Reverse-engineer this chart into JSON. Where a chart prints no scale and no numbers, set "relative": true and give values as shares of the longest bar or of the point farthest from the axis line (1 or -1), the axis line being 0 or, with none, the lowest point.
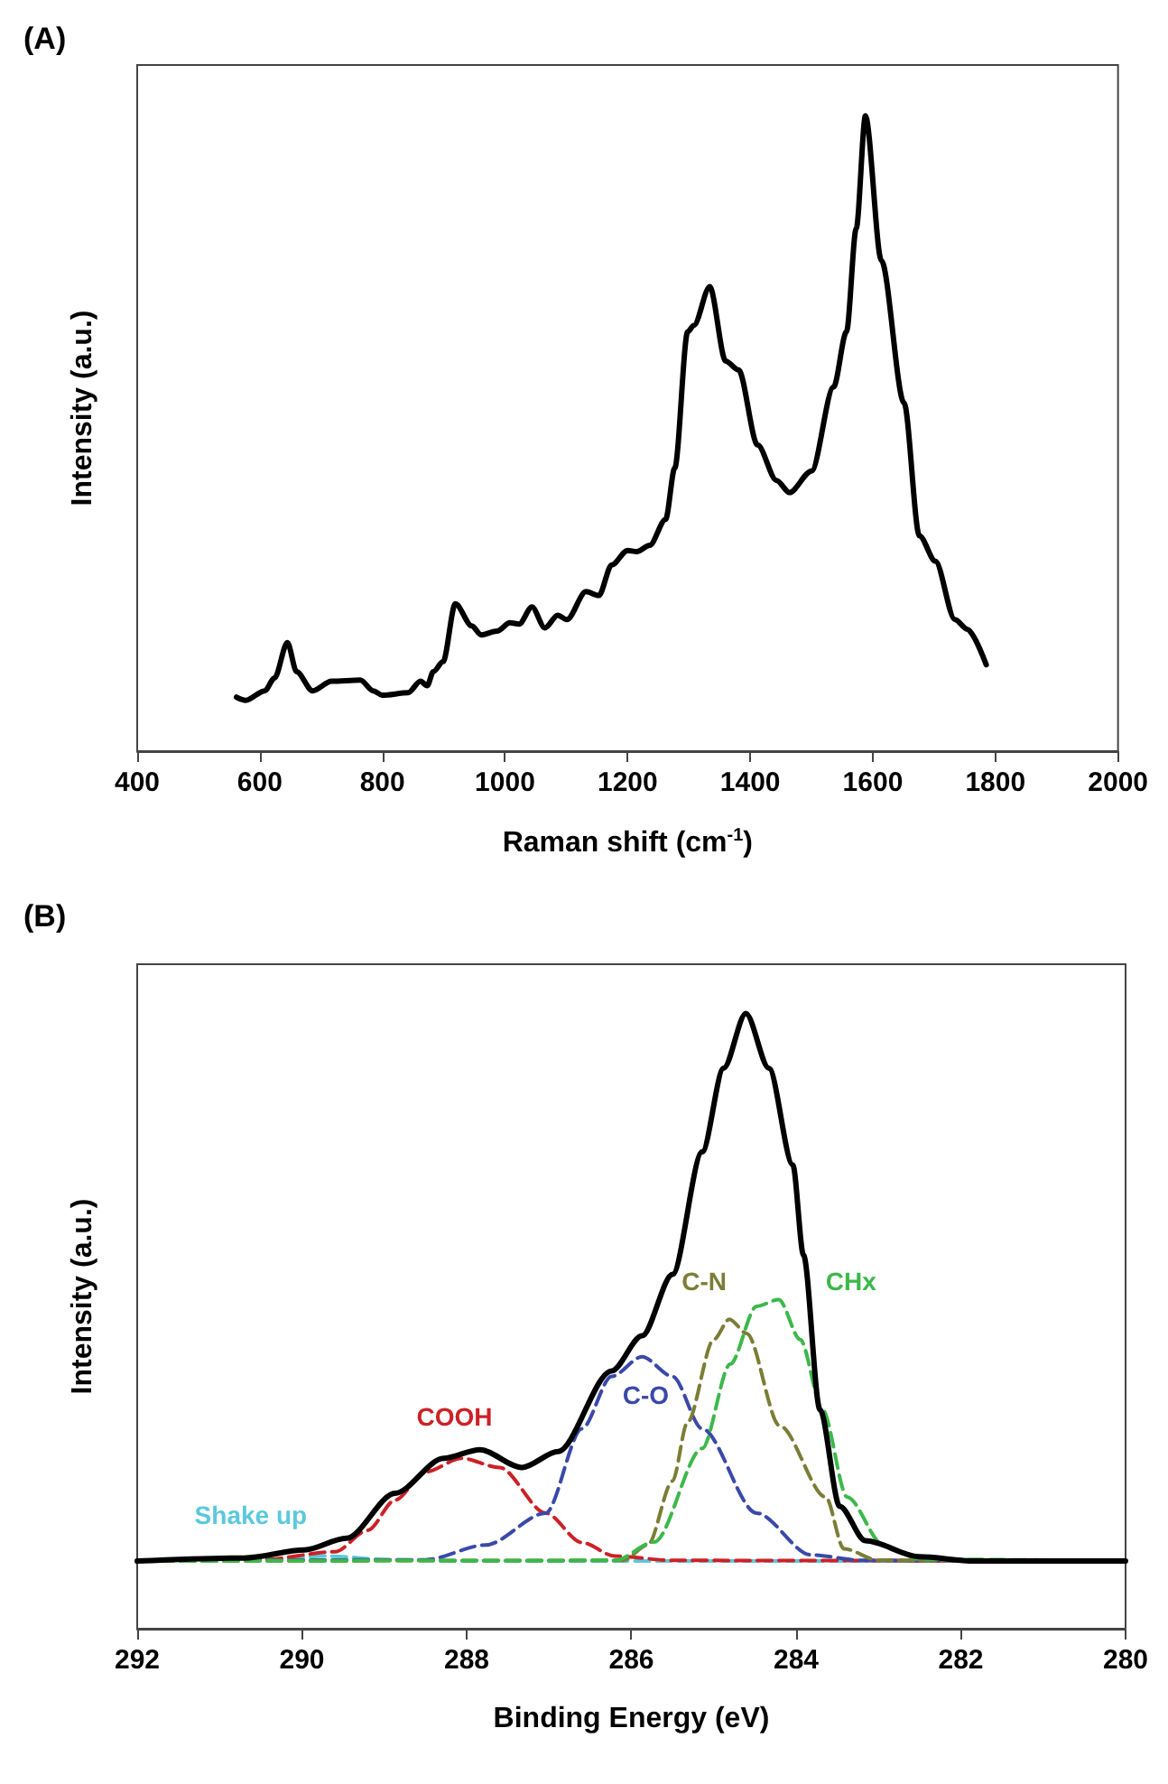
{
  "chart_data": [
    {
      "type": "line",
      "title": "(A)",
      "xlabel": "Raman shift (cm$^{-1}$)",
      "ylabel": "Intensity (a.u.)",
      "relative": true,
      "xlim": [
        400,
        2000
      ],
      "xticks": [
        400,
        600,
        800,
        1000,
        1200,
        1400,
        1600,
        1800,
        2000
      ],
      "grid": false,
      "legend": false,
      "marker": "none",
      "line_style": "solid",
      "series": [
        {
          "color": "#000000",
          "x": [
            562,
            577,
            608,
            624,
            645,
            660,
            686,
            717,
            764,
            785,
            800,
            842,
            862,
            873,
            883,
            899,
            919,
            946,
            961,
            987,
            1008,
            1023,
            1044,
            1065,
            1086,
            1101,
            1132,
            1153,
            1174,
            1200,
            1215,
            1236,
            1262,
            1277,
            1298,
            1308,
            1334,
            1360,
            1381,
            1412,
            1443,
            1464,
            1500,
            1536,
            1557,
            1573,
            1588,
            1614,
            1651,
            1676,
            1702,
            1734,
            1754,
            1785
          ],
          "values": [
            0.085,
            0.08,
            0.095,
            0.115,
            0.171,
            0.125,
            0.095,
            0.11,
            0.112,
            0.095,
            0.088,
            0.092,
            0.11,
            0.103,
            0.125,
            0.141,
            0.232,
            0.197,
            0.183,
            0.189,
            0.202,
            0.2,
            0.227,
            0.194,
            0.214,
            0.207,
            0.251,
            0.245,
            0.293,
            0.316,
            0.314,
            0.324,
            0.365,
            0.446,
            0.66,
            0.67,
            0.731,
            0.614,
            0.6,
            0.482,
            0.426,
            0.407,
            0.441,
            0.573,
            0.66,
            0.823,
            1.0,
            0.772,
            0.548,
            0.339,
            0.299,
            0.207,
            0.192,
            0.136
          ]
        }
      ]
    },
    {
      "type": "line",
      "title": "(B)",
      "xlabel": "Binding Energy (eV)",
      "ylabel": "Intensity (a.u.)",
      "relative": true,
      "xlim": [
        292,
        280
      ],
      "xticks": [
        292,
        290,
        288,
        286,
        284,
        282,
        280
      ],
      "grid": false,
      "legend": false,
      "marker": "none",
      "series": [
        {
          "color": "#000000",
          "line_style": "solid",
          "x": [
            292,
            290.7,
            289.97,
            289.46,
            288.87,
            288.28,
            287.84,
            287.33,
            286.89,
            286.24,
            285.87,
            285.5,
            285.14,
            284.88,
            284.61,
            284.33,
            284.04,
            283.91,
            283.71,
            283.47,
            283.16,
            282.5,
            281.84,
            280
          ],
          "values": [
            0.11,
            0.115,
            0.128,
            0.147,
            0.22,
            0.277,
            0.291,
            0.262,
            0.288,
            0.419,
            0.476,
            0.576,
            0.775,
            0.911,
            1.0,
            0.911,
            0.754,
            0.607,
            0.356,
            0.199,
            0.143,
            0.117,
            0.11,
            0.11
          ]
        },
        {
          "name": "Shake up",
          "color": "#5bc8dc",
          "line_style": "dashed",
          "x": [
            292,
            290.5,
            289.7,
            288.9,
            288,
            280
          ],
          "values": [
            0.11,
            0.112,
            0.118,
            0.112,
            0.11,
            0.11
          ]
        },
        {
          "name": "COOH",
          "color": "#cc2127",
          "line_style": "dashed",
          "x": [
            292,
            290.5,
            289.6,
            289.2,
            288.87,
            288.5,
            288.06,
            287.6,
            287.04,
            286.6,
            286.2,
            285.5,
            280
          ],
          "values": [
            0.11,
            0.112,
            0.125,
            0.16,
            0.209,
            0.255,
            0.277,
            0.262,
            0.188,
            0.14,
            0.118,
            0.111,
            0.11
          ]
        },
        {
          "name": "C-O",
          "color": "#3a49a8",
          "line_style": "dashed",
          "x": [
            292,
            288.5,
            287.77,
            287.04,
            286.6,
            286.24,
            285.87,
            285.5,
            285.14,
            284.48,
            283.82,
            283.2,
            280
          ],
          "values": [
            0.11,
            0.112,
            0.136,
            0.188,
            0.325,
            0.41,
            0.442,
            0.41,
            0.325,
            0.188,
            0.12,
            0.111,
            0.11
          ]
        },
        {
          "name": "C-N",
          "color": "#7b7d35",
          "line_style": "dashed",
          "x": [
            292,
            286.1,
            285.8,
            285.5,
            285.32,
            285.0,
            284.81,
            284.6,
            284.2,
            283.64,
            283.42,
            283.0,
            280
          ],
          "values": [
            0.11,
            0.111,
            0.136,
            0.24,
            0.335,
            0.47,
            0.503,
            0.48,
            0.33,
            0.214,
            0.13,
            0.111,
            0.11
          ]
        },
        {
          "name": "CHx",
          "color": "#3cb84a",
          "line_style": "dashed",
          "x": [
            292,
            286.2,
            285.72,
            285.14,
            284.8,
            284.48,
            284.21,
            283.95,
            283.68,
            283.38,
            282.94,
            282.5,
            280
          ],
          "values": [
            0.11,
            0.111,
            0.141,
            0.293,
            0.43,
            0.524,
            0.535,
            0.47,
            0.356,
            0.214,
            0.136,
            0.113,
            0.11
          ]
        }
      ]
    }
  ]
}
